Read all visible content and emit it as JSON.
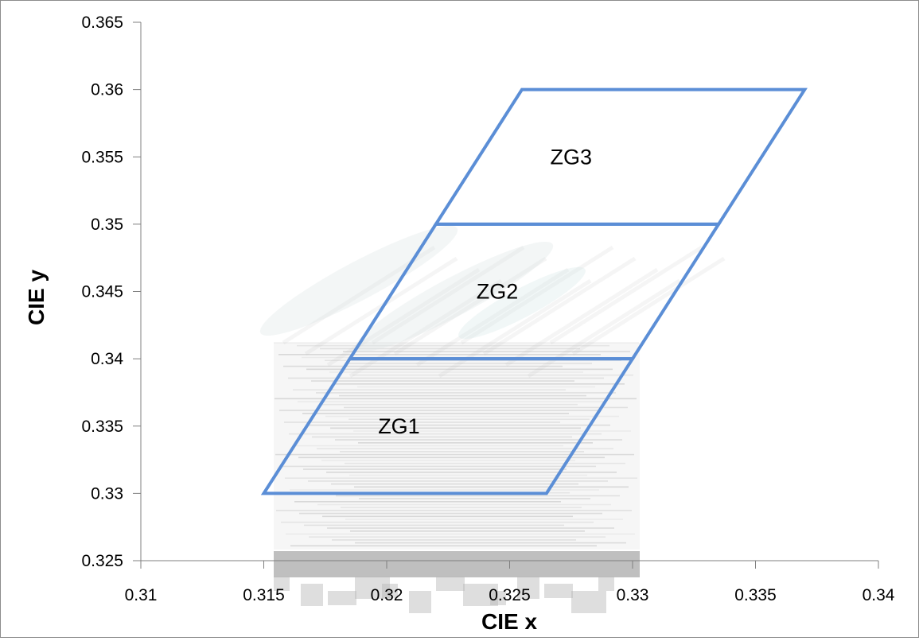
{
  "chart_data": {
    "type": "line",
    "title": "",
    "xlabel": "CIE  x",
    "ylabel": "CIE  y",
    "xlim": [
      0.31,
      0.34
    ],
    "ylim": [
      0.325,
      0.365
    ],
    "x_ticks": [
      "0.31",
      "0.315",
      "0.32",
      "0.325",
      "0.33",
      "0.335",
      "0.34"
    ],
    "y_ticks": [
      "0.325",
      "0.33",
      "0.335",
      "0.34",
      "0.345",
      "0.35",
      "0.355",
      "0.36",
      "0.365"
    ],
    "grid": false,
    "legend": "none",
    "colors": {
      "region_stroke": "#5b8ed6",
      "axis": "#7f7f7f",
      "background_artifacts": "#b5b5b5"
    },
    "regions": [
      {
        "label": "ZG1",
        "points": [
          [
            0.315,
            0.33
          ],
          [
            0.3265,
            0.33
          ],
          [
            0.33,
            0.34
          ],
          [
            0.3185,
            0.34
          ]
        ],
        "label_at": [
          0.3205,
          0.335
        ]
      },
      {
        "label": "ZG2",
        "points": [
          [
            0.3185,
            0.34
          ],
          [
            0.33,
            0.34
          ],
          [
            0.3335,
            0.35
          ],
          [
            0.322,
            0.35
          ]
        ],
        "label_at": [
          0.3245,
          0.345
        ]
      },
      {
        "label": "ZG3",
        "points": [
          [
            0.322,
            0.35
          ],
          [
            0.3335,
            0.35
          ],
          [
            0.337,
            0.36
          ],
          [
            0.3255,
            0.36
          ]
        ],
        "label_at": [
          0.3275,
          0.355
        ]
      }
    ]
  }
}
